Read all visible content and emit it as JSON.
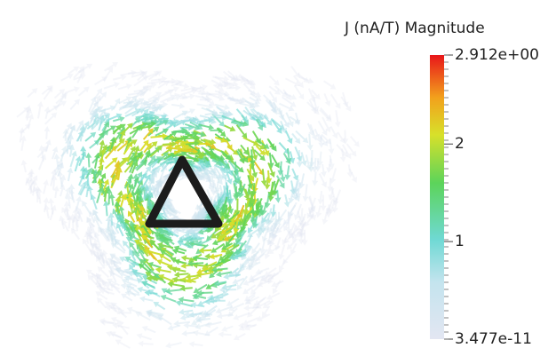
{
  "legend": {
    "title": "J (nA/T) Magnitude",
    "range": [
      3.477e-11,
      2.912
    ],
    "ticks": [
      {
        "value": 2.912,
        "label": "2.912e+00"
      },
      {
        "value": 2,
        "label": "2"
      },
      {
        "value": 1,
        "label": "1"
      },
      {
        "value": 3.477e-11,
        "label": "3.477e-11"
      }
    ]
  }
}
